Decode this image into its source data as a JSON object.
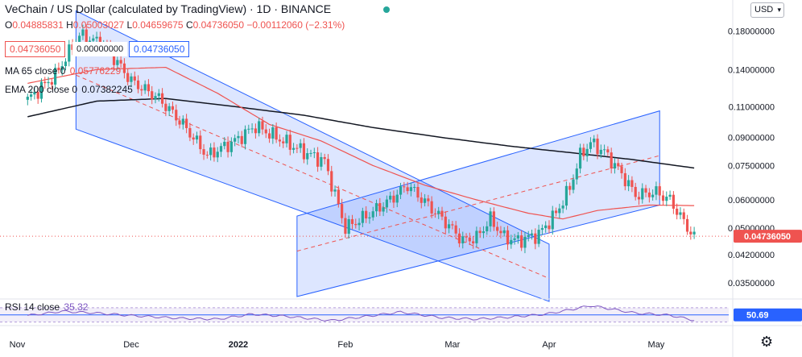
{
  "header": {
    "title": "VeChain / US Dollar (calculated by TradingView) · 1D · BINANCE",
    "ohlc": [
      {
        "k": "O",
        "v": "0.04885831"
      },
      {
        "k": "H",
        "v": "0.05003027"
      },
      {
        "k": "L",
        "v": "0.04659675"
      },
      {
        "k": "C",
        "v": "0.04736050"
      },
      {
        "k": "",
        "v": "−0.00112060 (−2.31%)"
      }
    ],
    "currency": "USD",
    "buy_price": "0.04736050",
    "spread": "0.00000000",
    "sell_price": "0.04736050"
  },
  "indicators": {
    "ma_label": "MA 65 close 0",
    "ma_value": "0.05776229",
    "ema_label": "EMA 200 close 0",
    "ema_value": "0.07382245",
    "rsi_label": "RSI 14 close",
    "rsi_value": "35.32",
    "rsi_axis_value": "50.69"
  },
  "colors": {
    "up": "#26a69a",
    "down": "#ef5350",
    "ma": "#ef5350",
    "ema": "#131722",
    "channel": "#2962ff",
    "rsi": "#7e57c2",
    "current_price_label": "#ef5350"
  },
  "chart_data": {
    "type": "candlestick",
    "y_scale": "log",
    "ylim": [
      0.032,
      0.22
    ],
    "x_labels": [
      "Nov",
      "Dec",
      "2022",
      "Feb",
      "Mar",
      "Apr",
      "May"
    ],
    "y_ticks": [
      "0.18000000",
      "0.14000000",
      "0.11000000",
      "0.09000000",
      "0.07500000",
      "0.06000000",
      "0.05000000",
      "0.04200000",
      "0.03500000"
    ],
    "last_price": "0.04736050",
    "anchors": [
      {
        "d": 0,
        "p": 0.115
      },
      {
        "d": 8,
        "p": 0.135
      },
      {
        "d": 15,
        "p": 0.175
      },
      {
        "d": 22,
        "p": 0.165
      },
      {
        "d": 30,
        "p": 0.13
      },
      {
        "d": 38,
        "p": 0.116
      },
      {
        "d": 45,
        "p": 0.098
      },
      {
        "d": 52,
        "p": 0.08
      },
      {
        "d": 60,
        "p": 0.088
      },
      {
        "d": 66,
        "p": 0.097
      },
      {
        "d": 74,
        "p": 0.088
      },
      {
        "d": 80,
        "p": 0.082
      },
      {
        "d": 86,
        "p": 0.077
      },
      {
        "d": 92,
        "p": 0.05
      },
      {
        "d": 98,
        "p": 0.054
      },
      {
        "d": 104,
        "p": 0.059
      },
      {
        "d": 110,
        "p": 0.066
      },
      {
        "d": 116,
        "p": 0.058
      },
      {
        "d": 121,
        "p": 0.052
      },
      {
        "d": 126,
        "p": 0.046
      },
      {
        "d": 130,
        "p": 0.047
      },
      {
        "d": 134,
        "p": 0.053
      },
      {
        "d": 138,
        "p": 0.047
      },
      {
        "d": 142,
        "p": 0.046
      },
      {
        "d": 148,
        "p": 0.048
      },
      {
        "d": 153,
        "p": 0.055
      },
      {
        "d": 157,
        "p": 0.065
      },
      {
        "d": 160,
        "p": 0.08
      },
      {
        "d": 163,
        "p": 0.087
      },
      {
        "d": 167,
        "p": 0.082
      },
      {
        "d": 172,
        "p": 0.071
      },
      {
        "d": 176,
        "p": 0.062
      },
      {
        "d": 182,
        "p": 0.063
      },
      {
        "d": 186,
        "p": 0.06
      },
      {
        "d": 190,
        "p": 0.052
      },
      {
        "d": 193,
        "p": 0.047
      }
    ],
    "ma65": [
      {
        "d": 0,
        "p": 0.128
      },
      {
        "d": 20,
        "p": 0.14
      },
      {
        "d": 40,
        "p": 0.142
      },
      {
        "d": 55,
        "p": 0.12
      },
      {
        "d": 70,
        "p": 0.098
      },
      {
        "d": 85,
        "p": 0.088
      },
      {
        "d": 100,
        "p": 0.075
      },
      {
        "d": 115,
        "p": 0.066
      },
      {
        "d": 130,
        "p": 0.06
      },
      {
        "d": 145,
        "p": 0.055
      },
      {
        "d": 155,
        "p": 0.053
      },
      {
        "d": 165,
        "p": 0.056
      },
      {
        "d": 180,
        "p": 0.058
      },
      {
        "d": 193,
        "p": 0.0578
      }
    ],
    "ema200": [
      {
        "d": 0,
        "p": 0.103
      },
      {
        "d": 20,
        "p": 0.114
      },
      {
        "d": 40,
        "p": 0.116
      },
      {
        "d": 60,
        "p": 0.11
      },
      {
        "d": 80,
        "p": 0.104
      },
      {
        "d": 100,
        "p": 0.096
      },
      {
        "d": 120,
        "p": 0.09
      },
      {
        "d": 140,
        "p": 0.085
      },
      {
        "d": 160,
        "p": 0.081
      },
      {
        "d": 175,
        "p": 0.078
      },
      {
        "d": 193,
        "p": 0.0738
      }
    ],
    "rsi": [
      {
        "d": 0,
        "v": 48
      },
      {
        "d": 10,
        "v": 60
      },
      {
        "d": 20,
        "v": 55
      },
      {
        "d": 30,
        "v": 48
      },
      {
        "d": 45,
        "v": 40
      },
      {
        "d": 55,
        "v": 38
      },
      {
        "d": 65,
        "v": 52
      },
      {
        "d": 75,
        "v": 46
      },
      {
        "d": 88,
        "v": 34
      },
      {
        "d": 100,
        "v": 48
      },
      {
        "d": 108,
        "v": 58
      },
      {
        "d": 120,
        "v": 42
      },
      {
        "d": 130,
        "v": 38
      },
      {
        "d": 140,
        "v": 44
      },
      {
        "d": 150,
        "v": 52
      },
      {
        "d": 158,
        "v": 66
      },
      {
        "d": 163,
        "v": 76
      },
      {
        "d": 168,
        "v": 68
      },
      {
        "d": 176,
        "v": 55
      },
      {
        "d": 186,
        "v": 49
      },
      {
        "d": 193,
        "v": 35
      }
    ]
  }
}
